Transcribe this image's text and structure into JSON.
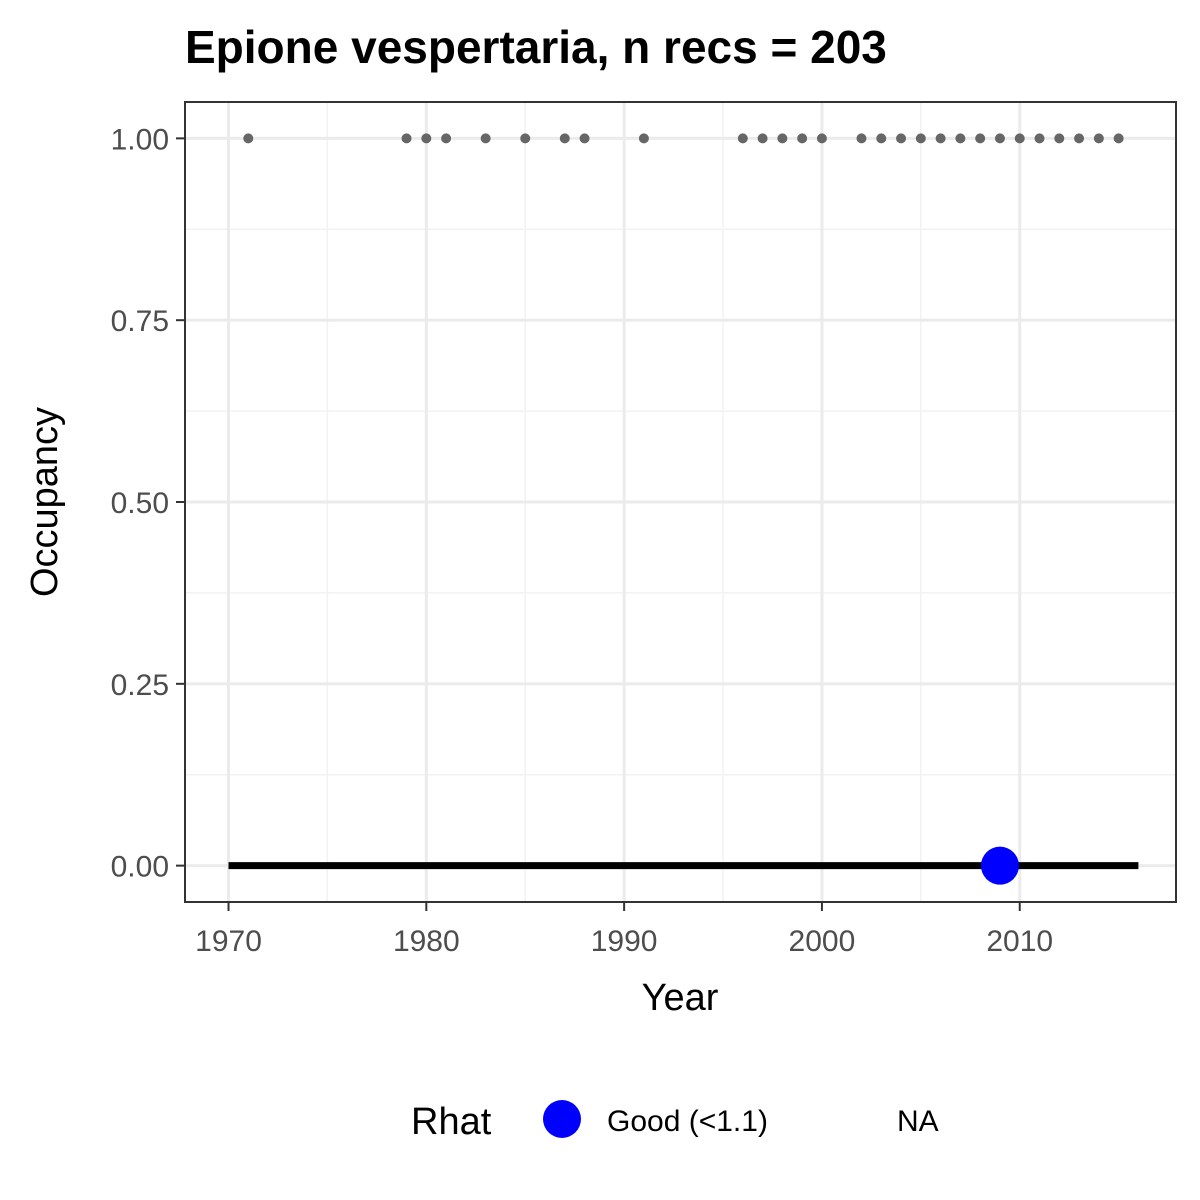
{
  "chart_data": {
    "type": "line",
    "title": "Epione vespertaria, n recs = 203",
    "xlabel": "Year",
    "ylabel": "Occupancy",
    "xlim": [
      1967.8,
      2017.9
    ],
    "ylim": [
      -0.05,
      1.05
    ],
    "x_ticks": [
      1970,
      1980,
      1990,
      2000,
      2010
    ],
    "x_tick_labels": [
      "1970",
      "1980",
      "1990",
      "2000",
      "2010"
    ],
    "y_ticks": [
      0,
      0.25,
      0.5,
      0.75,
      1.0
    ],
    "y_tick_labels": [
      "0.00",
      "0.25",
      "0.50",
      "0.75",
      "1.00"
    ],
    "grid": true,
    "series": [
      {
        "type": "line",
        "x": [
          1970,
          1971,
          1972,
          1973,
          1974,
          1975,
          1976,
          1977,
          1978,
          1979,
          1980,
          1981,
          1982,
          1983,
          1984,
          1985,
          1986,
          1987,
          1988,
          1989,
          1990,
          1991,
          1992,
          1993,
          1994,
          1995,
          1996,
          1997,
          1998,
          1999,
          2000,
          2001,
          2002,
          2003,
          2004,
          2005,
          2006,
          2007,
          2008,
          2009,
          2010,
          2011,
          2012,
          2013,
          2014,
          2015,
          2016
        ],
        "values": [
          0,
          0,
          0,
          0,
          0,
          0,
          0,
          0,
          0,
          0,
          0,
          0,
          0,
          0,
          0,
          0,
          0,
          0,
          0,
          0,
          0,
          0,
          0,
          0,
          0,
          0,
          0,
          0,
          0,
          0,
          0,
          0,
          0,
          0,
          0,
          0,
          0,
          0,
          0,
          0,
          0,
          0,
          0,
          0,
          0,
          0,
          0
        ],
        "color": "#000000"
      },
      {
        "type": "scatter",
        "x": [
          1971,
          1979,
          1980,
          1981,
          1983,
          1985,
          1987,
          1988,
          1991,
          1996,
          1997,
          1998,
          1999,
          2000,
          2002,
          2003,
          2004,
          2005,
          2006,
          2007,
          2008,
          2009,
          2010,
          2011,
          2012,
          2013,
          2014,
          2015
        ],
        "values": [
          1,
          1,
          1,
          1,
          1,
          1,
          1,
          1,
          1,
          1,
          1,
          1,
          1,
          1,
          1,
          1,
          1,
          1,
          1,
          1,
          1,
          1,
          1,
          1,
          1,
          1,
          1,
          1
        ],
        "color": "#666666"
      },
      {
        "type": "scatter",
        "x": [
          2009
        ],
        "values": [
          0
        ],
        "color": "#0000ff"
      }
    ],
    "legend": {
      "position": "bottom",
      "title": "Rhat",
      "entries": [
        {
          "label": "Good (<1.1)",
          "color": "#0000ff",
          "marker": "circle"
        },
        {
          "label": "NA",
          "color": "",
          "marker": "none"
        }
      ]
    }
  }
}
